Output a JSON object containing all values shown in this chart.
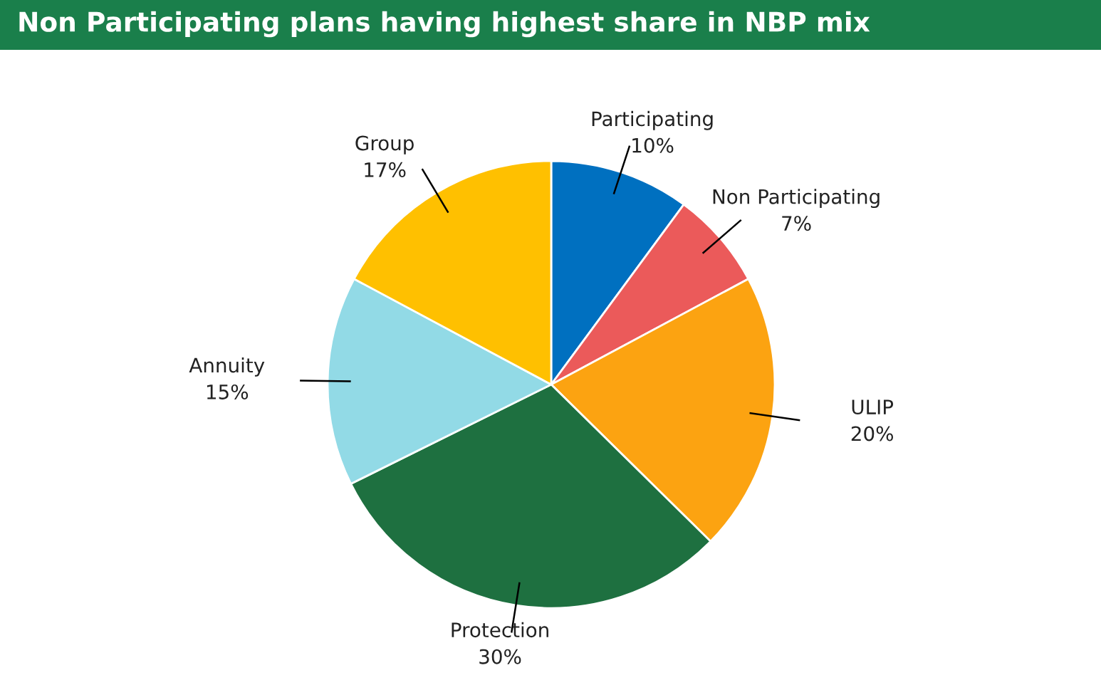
{
  "chart_data": {
    "type": "pie",
    "title": "Non Participating plans having highest share in NBP mix",
    "categories": [
      "Participating",
      "Non Participating",
      "ULIP",
      "Protection",
      "Annuity",
      "Group"
    ],
    "values": [
      10,
      7,
      20,
      30,
      15,
      17
    ],
    "value_labels": [
      "10%",
      "7%",
      "20%",
      "30%",
      "15%",
      "17%"
    ],
    "colors": [
      "#0070c0",
      "#eb5a5a",
      "#fca311",
      "#1e7040",
      "#92dae6",
      "#ffc000"
    ]
  }
}
